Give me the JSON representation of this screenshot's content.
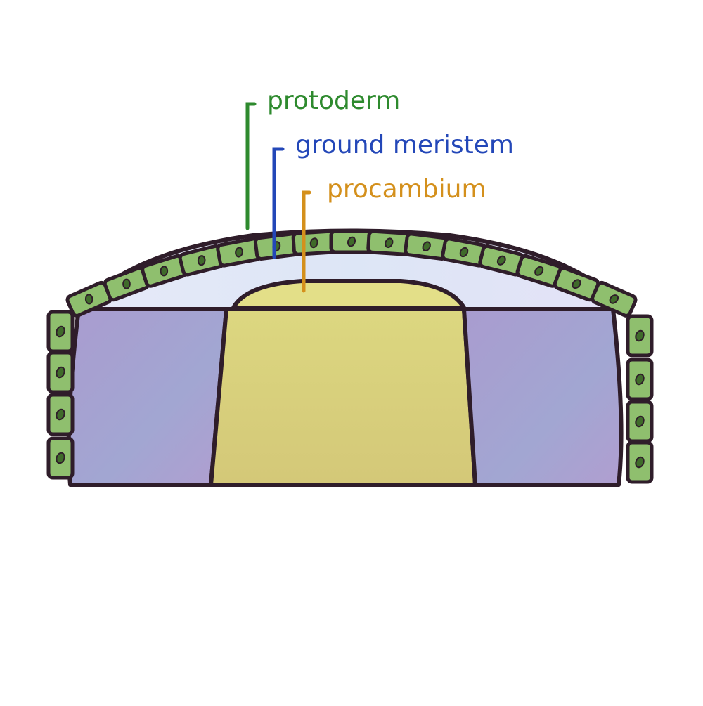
{
  "labels": {
    "protoderm": {
      "text": "protoderm",
      "color": "#2e8a2e"
    },
    "ground_meristem": {
      "text": "ground meristem",
      "color": "#2347b8"
    },
    "procambium": {
      "text": "procambium",
      "color": "#d4901c"
    }
  },
  "regions": {
    "protoderm": {
      "fill": "#8fbf6e",
      "nucleus": "#3f6b2a"
    },
    "ground_meristem": {
      "fill": "#dfe0f5",
      "block_fill": "#a6a6d4"
    },
    "procambium": {
      "fill": "#d8d27c",
      "cap_fill": "#e4df86"
    },
    "outline": "#2f1d2a"
  }
}
